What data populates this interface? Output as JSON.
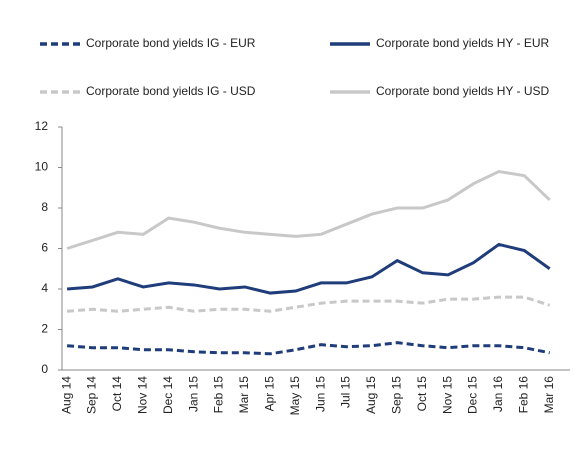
{
  "chart_data": {
    "type": "line",
    "categories": [
      "Aug 14",
      "Sep 14",
      "Oct 14",
      "Nov 14",
      "Dec 14",
      "Jan 15",
      "Feb 15",
      "Mar 15",
      "Apr 15",
      "May 15",
      "Jun 15",
      "Jul 15",
      "Aug 15",
      "Sep 15",
      "Oct 15",
      "Nov 15",
      "Dec 15",
      "Jan 16",
      "Feb 16",
      "Mar 16"
    ],
    "series": [
      {
        "name": "Corporate bond yields IG - EUR",
        "color": "#1f3d7a",
        "dashed": true,
        "values": [
          1.2,
          1.1,
          1.1,
          1.0,
          1.0,
          0.9,
          0.85,
          0.85,
          0.8,
          1.0,
          1.25,
          1.15,
          1.2,
          1.35,
          1.2,
          1.1,
          1.2,
          1.2,
          1.1,
          0.85
        ]
      },
      {
        "name": "Corporate bond yields HY - EUR",
        "color": "#1f3d7a",
        "dashed": false,
        "values": [
          4.0,
          4.1,
          4.5,
          4.1,
          4.3,
          4.2,
          4.0,
          4.1,
          3.8,
          3.9,
          4.3,
          4.3,
          4.6,
          5.4,
          4.8,
          4.7,
          5.3,
          6.2,
          5.9,
          5.0
        ]
      },
      {
        "name": "Corporate bond yields IG - USD",
        "color": "#c8c8c8",
        "dashed": true,
        "values": [
          2.9,
          3.0,
          2.9,
          3.0,
          3.1,
          2.9,
          3.0,
          3.0,
          2.9,
          3.1,
          3.3,
          3.4,
          3.4,
          3.4,
          3.3,
          3.5,
          3.5,
          3.6,
          3.6,
          3.2
        ]
      },
      {
        "name": "Corporate bond yields HY - USD",
        "color": "#c8c8c8",
        "dashed": false,
        "values": [
          6.0,
          6.4,
          6.8,
          6.7,
          7.5,
          7.3,
          7.0,
          6.8,
          6.7,
          6.6,
          6.7,
          7.2,
          7.7,
          8.0,
          8.0,
          8.4,
          9.2,
          9.8,
          9.6,
          8.4
        ]
      }
    ],
    "ylim": [
      0,
      12
    ],
    "yticks": [
      0,
      2,
      4,
      6,
      8,
      10,
      12
    ],
    "grid": false
  }
}
